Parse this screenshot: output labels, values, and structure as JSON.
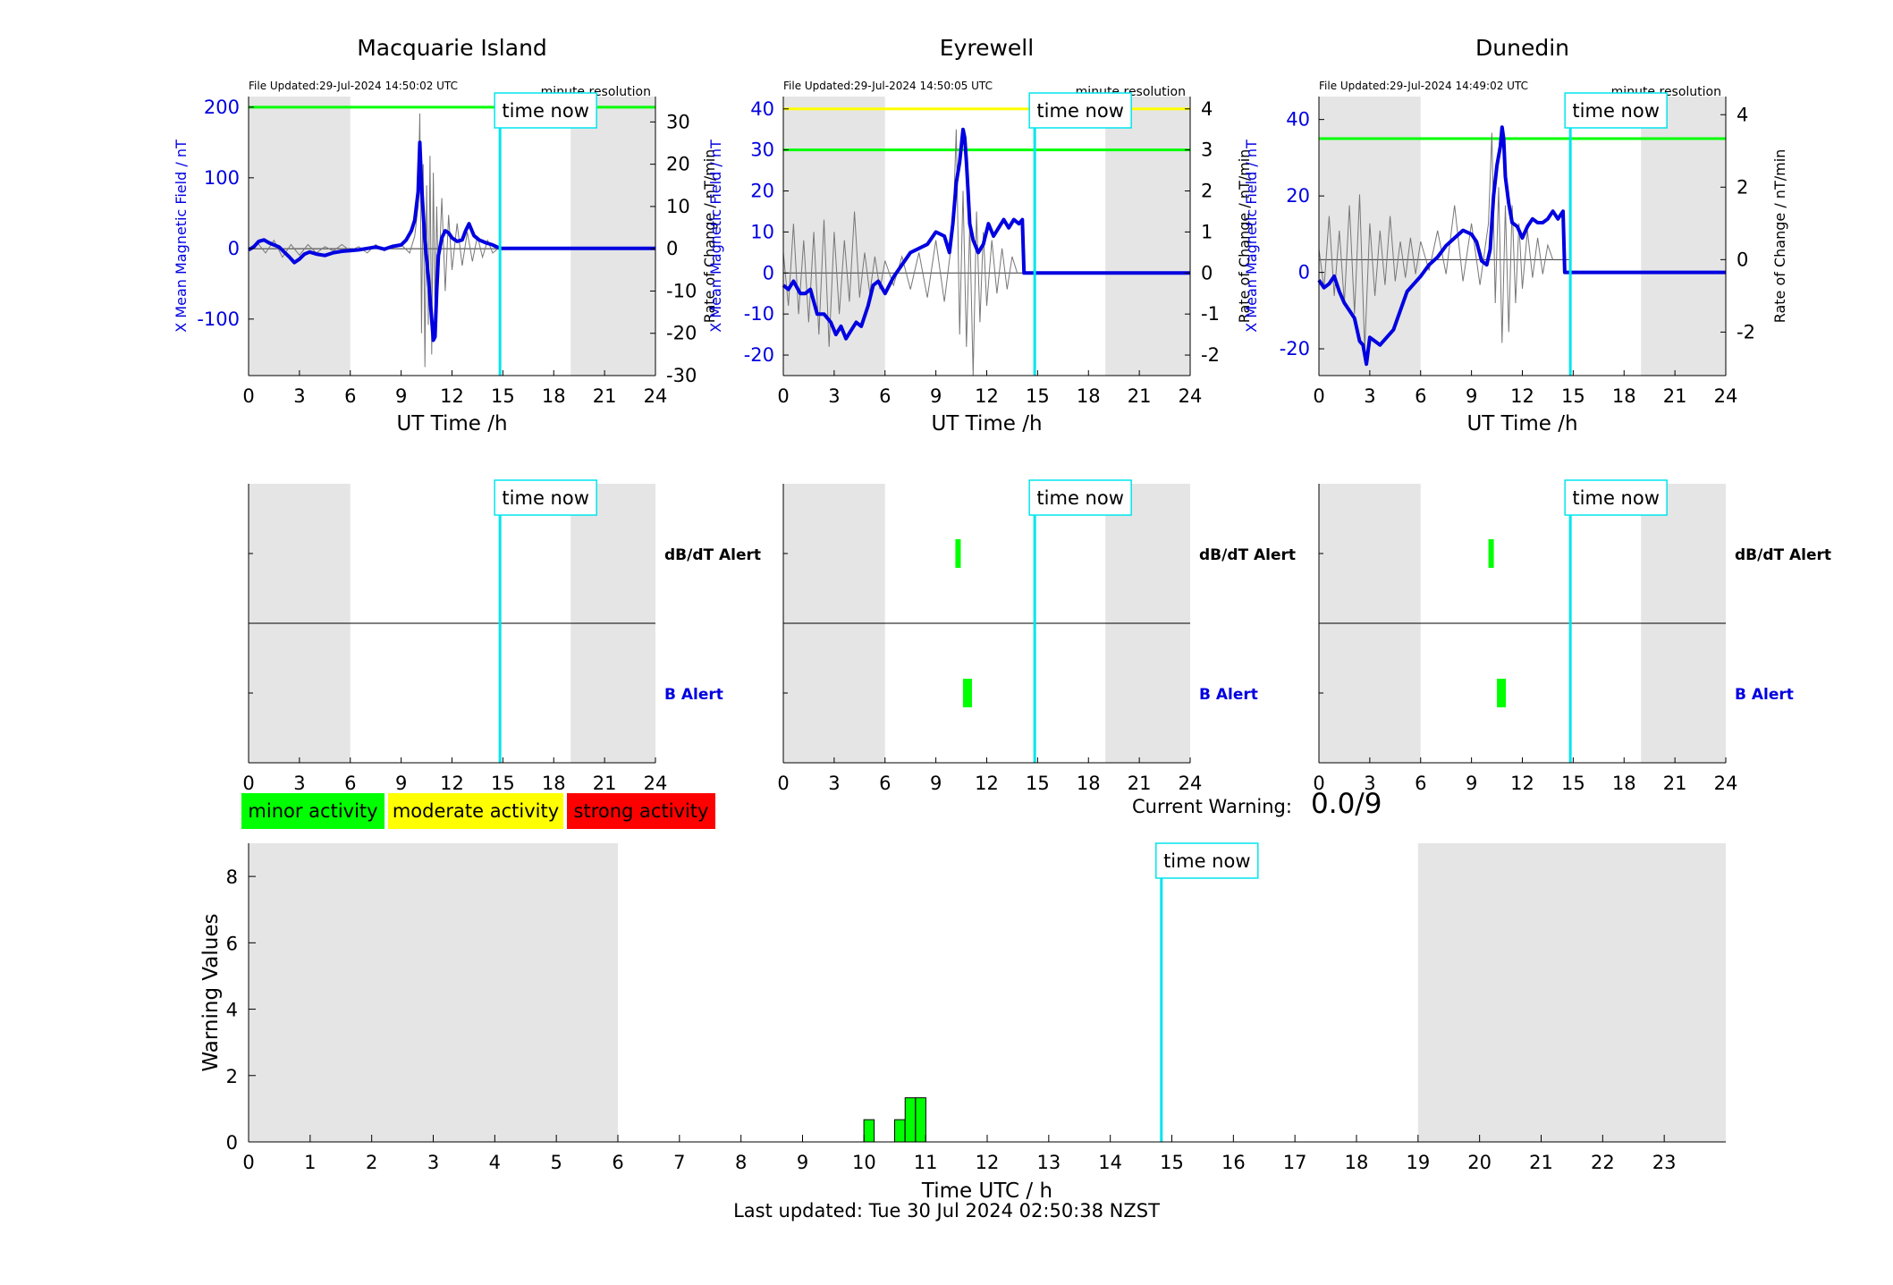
{
  "x_axis_label": "UT Time /h",
  "alert_labels": {
    "dbdt": "dB/dT Alert",
    "b": "B Alert"
  },
  "time_now_label": "time now",
  "legend": [
    {
      "label": "minor activity",
      "color": "#00ff00"
    },
    {
      "label": "moderate activity",
      "color": "#ffff00"
    },
    {
      "label": "strong activity",
      "color": "#ff0000"
    }
  ],
  "current_warning": {
    "label": "Current Warning:",
    "value": "0.0/9"
  },
  "footer": "Last updated: Tue 30 Jul 2024 02:50:38 NZST",
  "colors": {
    "field": "#0000e0",
    "now": "#00e5ee",
    "night": "#e5e5e5",
    "minor": "#00ff00",
    "moderate": "#ffff00",
    "strong": "#ff0000"
  },
  "chart_data": [
    {
      "type": "line",
      "title": "Macquarie Island",
      "file_updated": "File Updated:29-Jul-2024 14:50:02 UTC",
      "resolution": "minute resolution",
      "xlabel": "UT Time /h",
      "ylabel_left": "X Mean Magnetic Field / nT",
      "ylabel_right": "Rate of Change / nT/min",
      "xlim": [
        0,
        24
      ],
      "x_ticks": [
        0,
        3,
        6,
        9,
        12,
        15,
        18,
        21,
        24
      ],
      "ylim_left": [
        -180,
        215
      ],
      "y_ticks_left": [
        -100,
        0,
        100,
        200
      ],
      "ylim_right": [
        -30,
        36
      ],
      "y_ticks_right": [
        -30,
        -20,
        -10,
        0,
        10,
        20,
        30
      ],
      "night_shading": [
        [
          0,
          6
        ],
        [
          19,
          24
        ]
      ],
      "time_now": 14.83,
      "threshold_lines": [
        {
          "value": 200,
          "color": "#00ff00"
        }
      ],
      "field_series": {
        "x": [
          0,
          0.3,
          0.6,
          0.9,
          1.2,
          1.5,
          1.8,
          2.1,
          2.4,
          2.7,
          3.0,
          3.3,
          3.6,
          4.0,
          4.5,
          5.0,
          5.5,
          6.0,
          6.5,
          7.0,
          7.5,
          8.0,
          8.5,
          9.0,
          9.3,
          9.6,
          9.8,
          10.0,
          10.1,
          10.2,
          10.3,
          10.4,
          10.6,
          10.8,
          10.9,
          11.0,
          11.1,
          11.2,
          11.4,
          11.6,
          11.8,
          12.0,
          12.3,
          12.6,
          12.8,
          13.0,
          13.3,
          13.6,
          14.0,
          14.4,
          14.83,
          16,
          18,
          20,
          22,
          24
        ],
        "y": [
          -2,
          2,
          10,
          12,
          8,
          5,
          2,
          -5,
          -12,
          -20,
          -15,
          -8,
          -5,
          -8,
          -10,
          -6,
          -4,
          -3,
          -2,
          0,
          2,
          -1,
          3,
          5,
          12,
          25,
          40,
          80,
          150,
          90,
          50,
          10,
          -40,
          -100,
          -130,
          -125,
          -60,
          -10,
          15,
          25,
          22,
          15,
          10,
          12,
          25,
          35,
          18,
          12,
          8,
          5,
          0,
          0,
          0,
          0,
          0,
          0
        ]
      },
      "rate_series": {
        "x": [
          0,
          0.5,
          1,
          1.5,
          2,
          2.5,
          3,
          3.5,
          4,
          4.5,
          5,
          5.5,
          6,
          6.5,
          7,
          7.5,
          8,
          8.5,
          9,
          9.5,
          9.8,
          10,
          10.1,
          10.2,
          10.3,
          10.4,
          10.5,
          10.6,
          10.7,
          10.8,
          10.9,
          11,
          11.1,
          11.2,
          11.4,
          11.6,
          11.8,
          12,
          12.3,
          12.6,
          12.9,
          13.2,
          13.5,
          13.8,
          14.1,
          14.4,
          14.7
        ],
        "y": [
          0,
          1.5,
          -1,
          2,
          -2,
          1,
          -1.5,
          1,
          -1,
          0.5,
          -0.5,
          1,
          -0.5,
          0.5,
          -1,
          1,
          -0.5,
          0.5,
          1,
          -1,
          3,
          10,
          32,
          -20,
          20,
          -28,
          15,
          -18,
          22,
          -25,
          18,
          -15,
          10,
          -8,
          12,
          -10,
          8,
          -5,
          6,
          -4,
          4,
          -3,
          3,
          -2,
          2,
          -1,
          0
        ]
      }
    },
    {
      "type": "line",
      "title": "Eyrewell",
      "file_updated": "File Updated:29-Jul-2024 14:50:05 UTC",
      "resolution": "minute resolution",
      "xlabel": "UT Time /h",
      "ylabel_left": "X Mean Magnetic Field / nT",
      "ylabel_right": "Rate of Change / nT/min",
      "xlim": [
        0,
        24
      ],
      "x_ticks": [
        0,
        3,
        6,
        9,
        12,
        15,
        18,
        21,
        24
      ],
      "ylim_left": [
        -25,
        43
      ],
      "y_ticks_left": [
        -20,
        -10,
        0,
        10,
        20,
        30,
        40
      ],
      "ylim_right": [
        -2.5,
        4.3
      ],
      "y_ticks_right": [
        -2,
        -1,
        0,
        1,
        2,
        3,
        4
      ],
      "night_shading": [
        [
          0,
          6
        ],
        [
          19,
          24
        ]
      ],
      "time_now": 14.83,
      "threshold_lines": [
        {
          "value": 40,
          "color": "#ffff00"
        },
        {
          "value": 30,
          "color": "#00ff00"
        }
      ],
      "field_series": {
        "x": [
          0,
          0.3,
          0.6,
          1.0,
          1.3,
          1.6,
          2.0,
          2.4,
          2.8,
          3.1,
          3.4,
          3.7,
          4.0,
          4.3,
          4.6,
          5.0,
          5.3,
          5.6,
          6.0,
          6.5,
          7.0,
          7.5,
          8.0,
          8.5,
          9.0,
          9.5,
          9.8,
          10.0,
          10.2,
          10.4,
          10.6,
          10.7,
          10.8,
          10.9,
          11.0,
          11.2,
          11.5,
          11.8,
          12.1,
          12.4,
          12.7,
          13.0,
          13.3,
          13.6,
          13.9,
          14.1,
          14.2,
          14.5,
          15,
          18,
          21,
          24
        ],
        "y": [
          -3,
          -4,
          -2,
          -5,
          -5,
          -4,
          -10,
          -10,
          -12,
          -15,
          -13,
          -16,
          -14,
          -12,
          -13,
          -8,
          -3,
          -2,
          -5,
          -1,
          2,
          5,
          6,
          7,
          10,
          9,
          5,
          12,
          22,
          27,
          35,
          33,
          27,
          20,
          12,
          8,
          5,
          7,
          12,
          9,
          11,
          13,
          11,
          13,
          12,
          13,
          0,
          0,
          0,
          0,
          0,
          0
        ]
      },
      "rate_series": {
        "x": [
          0,
          0.3,
          0.6,
          0.9,
          1.2,
          1.5,
          1.8,
          2.1,
          2.4,
          2.7,
          3,
          3.3,
          3.6,
          3.9,
          4.2,
          4.5,
          4.8,
          5.1,
          5.4,
          5.7,
          6,
          6.5,
          7,
          7.5,
          8,
          8.5,
          9,
          9.5,
          10,
          10.2,
          10.4,
          10.6,
          10.8,
          11,
          11.2,
          11.4,
          11.6,
          11.8,
          12,
          12.3,
          12.6,
          12.9,
          13.2,
          13.5,
          13.8
        ],
        "y": [
          0.5,
          -0.8,
          1.2,
          -1,
          0.8,
          -1.2,
          1,
          -1.5,
          1.3,
          -1.8,
          1,
          -1,
          0.8,
          -0.7,
          1.5,
          -0.6,
          0.5,
          -0.5,
          0.4,
          -0.4,
          0.3,
          -0.3,
          0.4,
          -0.4,
          0.5,
          -0.6,
          0.8,
          -0.7,
          1,
          3.5,
          -1.5,
          2,
          -1.8,
          1.2,
          -2.5,
          1.5,
          -1.2,
          1,
          -0.8,
          0.8,
          -0.5,
          0.6,
          -0.4,
          0.4,
          0
        ]
      }
    },
    {
      "type": "line",
      "title": "Dunedin",
      "file_updated": "File Updated:29-Jul-2024 14:49:02 UTC",
      "resolution": "minute resolution",
      "xlabel": "UT Time /h",
      "ylabel_left": "X Mean Magnetic Field / nT",
      "ylabel_right": "Rate of Change / nT/min",
      "xlim": [
        0,
        24
      ],
      "x_ticks": [
        0,
        3,
        6,
        9,
        12,
        15,
        18,
        21,
        24
      ],
      "ylim_left": [
        -27,
        46
      ],
      "y_ticks_left": [
        -20,
        0,
        20,
        40
      ],
      "ylim_right": [
        -3.2,
        4.5
      ],
      "y_ticks_right": [
        -2,
        0,
        2,
        4
      ],
      "night_shading": [
        [
          0,
          6
        ],
        [
          19,
          24
        ]
      ],
      "time_now": 14.83,
      "threshold_lines": [
        {
          "value": 35,
          "color": "#00ff00"
        }
      ],
      "field_series": {
        "x": [
          0,
          0.3,
          0.6,
          0.9,
          1.2,
          1.5,
          1.8,
          2.1,
          2.4,
          2.6,
          2.8,
          3.0,
          3.3,
          3.6,
          4.0,
          4.4,
          4.8,
          5.2,
          5.6,
          6.0,
          6.5,
          7.0,
          7.5,
          8.0,
          8.5,
          9.0,
          9.3,
          9.6,
          9.9,
          10.1,
          10.3,
          10.5,
          10.7,
          10.8,
          10.9,
          11.0,
          11.2,
          11.4,
          11.7,
          12.0,
          12.3,
          12.6,
          12.9,
          13.2,
          13.5,
          13.8,
          14.1,
          14.4,
          14.5,
          15,
          18,
          21,
          24
        ],
        "y": [
          -2,
          -4,
          -3,
          -1,
          -5,
          -8,
          -10,
          -12,
          -18,
          -19,
          -24,
          -17,
          -18,
          -19,
          -17,
          -15,
          -10,
          -5,
          -3,
          -1,
          2,
          4,
          7,
          9,
          11,
          10,
          8,
          3,
          2,
          6,
          20,
          28,
          33,
          38,
          35,
          25,
          18,
          13,
          12,
          9,
          12,
          14,
          13,
          13,
          14,
          16,
          14,
          16,
          0,
          0,
          0,
          0,
          0
        ]
      },
      "rate_series": {
        "x": [
          0,
          0.3,
          0.6,
          0.9,
          1.2,
          1.5,
          1.8,
          2.1,
          2.4,
          2.7,
          3,
          3.3,
          3.6,
          3.9,
          4.2,
          4.5,
          4.8,
          5.1,
          5.4,
          5.7,
          6,
          6.5,
          7,
          7.5,
          8,
          8.5,
          9,
          9.5,
          10,
          10.2,
          10.4,
          10.6,
          10.8,
          11,
          11.2,
          11.4,
          11.6,
          11.8,
          12,
          12.3,
          12.6,
          12.9,
          13.2,
          13.5,
          13.8
        ],
        "y": [
          0.3,
          -0.8,
          1.2,
          -1,
          0.8,
          -1.2,
          1.5,
          -1.5,
          1.8,
          -2.5,
          1,
          -1,
          0.8,
          -0.7,
          1.2,
          -0.6,
          0.5,
          -0.5,
          0.6,
          -0.4,
          0.5,
          -0.3,
          0.8,
          -0.4,
          1.5,
          -0.6,
          1,
          -0.7,
          1,
          3.5,
          -1.2,
          2,
          -2.3,
          1.5,
          -2,
          1.5,
          -1.2,
          1,
          -0.8,
          0.8,
          -0.5,
          0.6,
          -0.4,
          0.4,
          0
        ]
      }
    },
    {
      "type": "bar",
      "title": "",
      "xlabel": "Time UTC / h",
      "ylabel": "Warning Values",
      "xlim": [
        0,
        24
      ],
      "x_ticks": [
        0,
        1,
        2,
        3,
        4,
        5,
        6,
        7,
        8,
        9,
        10,
        11,
        12,
        13,
        14,
        15,
        16,
        17,
        18,
        19,
        20,
        21,
        22,
        23
      ],
      "ylim": [
        0,
        9
      ],
      "y_ticks": [
        0,
        2,
        4,
        6,
        8
      ],
      "night_shading": [
        [
          0,
          6
        ],
        [
          19,
          24
        ]
      ],
      "time_now": 14.83,
      "bars": [
        {
          "x": 10.08,
          "value": 0.67
        },
        {
          "x": 10.58,
          "value": 0.67
        },
        {
          "x": 10.75,
          "value": 1.33
        },
        {
          "x": 10.92,
          "value": 1.33
        }
      ]
    }
  ],
  "alert_panels": [
    {
      "station": "Macquarie Island",
      "dbdt": [],
      "b": []
    },
    {
      "station": "Eyrewell",
      "dbdt": [
        [
          10.15,
          10.35
        ]
      ],
      "b": [
        [
          10.6,
          11.0
        ]
      ]
    },
    {
      "station": "Dunedin",
      "dbdt": [
        [
          10.0,
          10.25
        ]
      ],
      "b": [
        [
          10.5,
          10.8
        ]
      ]
    }
  ]
}
